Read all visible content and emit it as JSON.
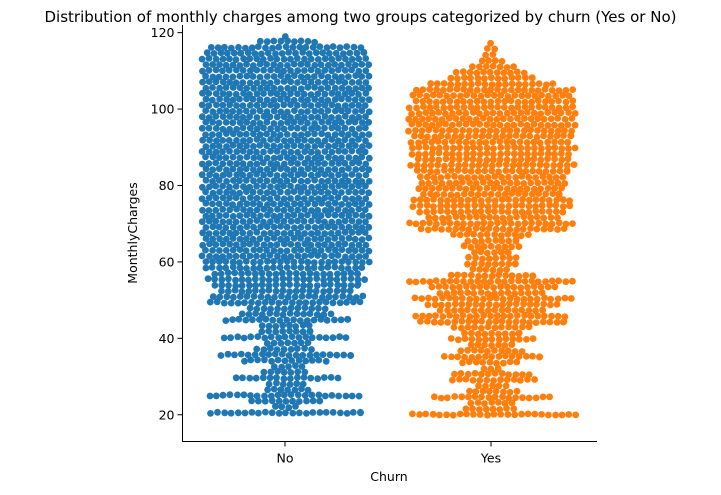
{
  "chart_data": {
    "type": "scatter",
    "subtype": "swarm",
    "title": "Distribution of monthly charges among two groups categorized by churn (Yes or No)",
    "xlabel": "Churn",
    "ylabel": "MonthlyCharges",
    "categories": [
      "No",
      "Yes"
    ],
    "ylim": [
      13,
      122
    ],
    "yticks": [
      20,
      40,
      60,
      80,
      100,
      120
    ],
    "grid": false,
    "series": [
      {
        "category": "No",
        "color": "#1f77b4",
        "density": [
          [
            19,
            0
          ],
          [
            19.5,
            0.95
          ],
          [
            20,
            1.0
          ],
          [
            20.5,
            0.95
          ],
          [
            21,
            0.7
          ],
          [
            22,
            0.15
          ],
          [
            23,
            0.3
          ],
          [
            24,
            0.6
          ],
          [
            24.5,
            0.85
          ],
          [
            25,
            0.95
          ],
          [
            25.5,
            0.7
          ],
          [
            26,
            0.4
          ],
          [
            27,
            0.2
          ],
          [
            28,
            0.2
          ],
          [
            29,
            0.4
          ],
          [
            30,
            0.8
          ],
          [
            30.5,
            0.55
          ],
          [
            31,
            0.3
          ],
          [
            32,
            0.2
          ],
          [
            33,
            0.2
          ],
          [
            34,
            0.45
          ],
          [
            35,
            0.8
          ],
          [
            35.5,
            0.9
          ],
          [
            36,
            0.7
          ],
          [
            37,
            0.4
          ],
          [
            38,
            0.25
          ],
          [
            39,
            0.3
          ],
          [
            40,
            0.7
          ],
          [
            40.5,
            0.8
          ],
          [
            41,
            0.5
          ],
          [
            42,
            0.3
          ],
          [
            43,
            0.25
          ],
          [
            44,
            0.45
          ],
          [
            45,
            0.85
          ],
          [
            45.5,
            0.9
          ],
          [
            46,
            0.6
          ],
          [
            47,
            0.4
          ],
          [
            48,
            0.5
          ],
          [
            49,
            0.85
          ],
          [
            50,
            1.0
          ],
          [
            51,
            0.9
          ],
          [
            52,
            0.75
          ],
          [
            54,
            0.9
          ],
          [
            55,
            1.0
          ],
          [
            56,
            0.85
          ],
          [
            58,
            0.95
          ],
          [
            60,
            1.0
          ],
          [
            62,
            1.0
          ],
          [
            65,
            1.0
          ],
          [
            70,
            1.0
          ],
          [
            75,
            1.0
          ],
          [
            80,
            1.0
          ],
          [
            85,
            1.0
          ],
          [
            90,
            1.0
          ],
          [
            95,
            1.0
          ],
          [
            100,
            1.0
          ],
          [
            105,
            1.0
          ],
          [
            110,
            1.0
          ],
          [
            114,
            1.0
          ],
          [
            116,
            0.95
          ],
          [
            117,
            0.6
          ],
          [
            118,
            0.25
          ],
          [
            118.7,
            0.1
          ],
          [
            119.5,
            0
          ]
        ]
      },
      {
        "category": "Yes",
        "color": "#ff7f0e",
        "density": [
          [
            18.5,
            0
          ],
          [
            19.2,
            0.95
          ],
          [
            20,
            1.0
          ],
          [
            21,
            0.6
          ],
          [
            22,
            0.1
          ],
          [
            24,
            0.5
          ],
          [
            25,
            0.85
          ],
          [
            25.5,
            0.75
          ],
          [
            26,
            0.35
          ],
          [
            27,
            0.15
          ],
          [
            28,
            0.2
          ],
          [
            29,
            0.5
          ],
          [
            30,
            0.7
          ],
          [
            30.5,
            0.55
          ],
          [
            31,
            0.25
          ],
          [
            32,
            0.15
          ],
          [
            33,
            0.2
          ],
          [
            34,
            0.45
          ],
          [
            35,
            0.65
          ],
          [
            36,
            0.5
          ],
          [
            37,
            0.35
          ],
          [
            38,
            0.3
          ],
          [
            39,
            0.35
          ],
          [
            40,
            0.55
          ],
          [
            41,
            0.4
          ],
          [
            42,
            0.35
          ],
          [
            43,
            0.5
          ],
          [
            44,
            0.85
          ],
          [
            45,
            1.0
          ],
          [
            46,
            0.9
          ],
          [
            47,
            0.7
          ],
          [
            48,
            0.6
          ],
          [
            49,
            0.8
          ],
          [
            50,
            1.0
          ],
          [
            51,
            0.9
          ],
          [
            52,
            0.6
          ],
          [
            53,
            0.7
          ],
          [
            54,
            0.85
          ],
          [
            55,
            1.0
          ],
          [
            56,
            0.7
          ],
          [
            57,
            0.35
          ],
          [
            58,
            0.25
          ],
          [
            59,
            0.3
          ],
          [
            60,
            0.4
          ],
          [
            61,
            0.3
          ],
          [
            62,
            0.25
          ],
          [
            63,
            0.3
          ],
          [
            64,
            0.35
          ],
          [
            65,
            0.4
          ],
          [
            66,
            0.3
          ],
          [
            67,
            0.45
          ],
          [
            68,
            0.8
          ],
          [
            69,
            0.95
          ],
          [
            70,
            1.0
          ],
          [
            71,
            0.9
          ],
          [
            72,
            0.75
          ],
          [
            74,
            0.95
          ],
          [
            75,
            1.0
          ],
          [
            76,
            0.95
          ],
          [
            78,
            0.85
          ],
          [
            80,
            0.9
          ],
          [
            82,
            0.85
          ],
          [
            84,
            0.95
          ],
          [
            85,
            1.0
          ],
          [
            86,
            0.9
          ],
          [
            88,
            0.95
          ],
          [
            90,
            1.0
          ],
          [
            92,
            0.95
          ],
          [
            94,
            1.0
          ],
          [
            96,
            1.0
          ],
          [
            98,
            1.0
          ],
          [
            100,
            1.0
          ],
          [
            102,
            0.95
          ],
          [
            104,
            0.95
          ],
          [
            105.5,
            0.95
          ],
          [
            106.5,
            0.75
          ],
          [
            107.5,
            0.55
          ],
          [
            108.5,
            0.55
          ],
          [
            109.5,
            0.45
          ],
          [
            110.5,
            0.35
          ],
          [
            111.5,
            0.25
          ],
          [
            112.5,
            0.15
          ],
          [
            114,
            0.1
          ],
          [
            115.5,
            0.08
          ],
          [
            117,
            0.05
          ],
          [
            118.5,
            0
          ]
        ]
      }
    ]
  }
}
